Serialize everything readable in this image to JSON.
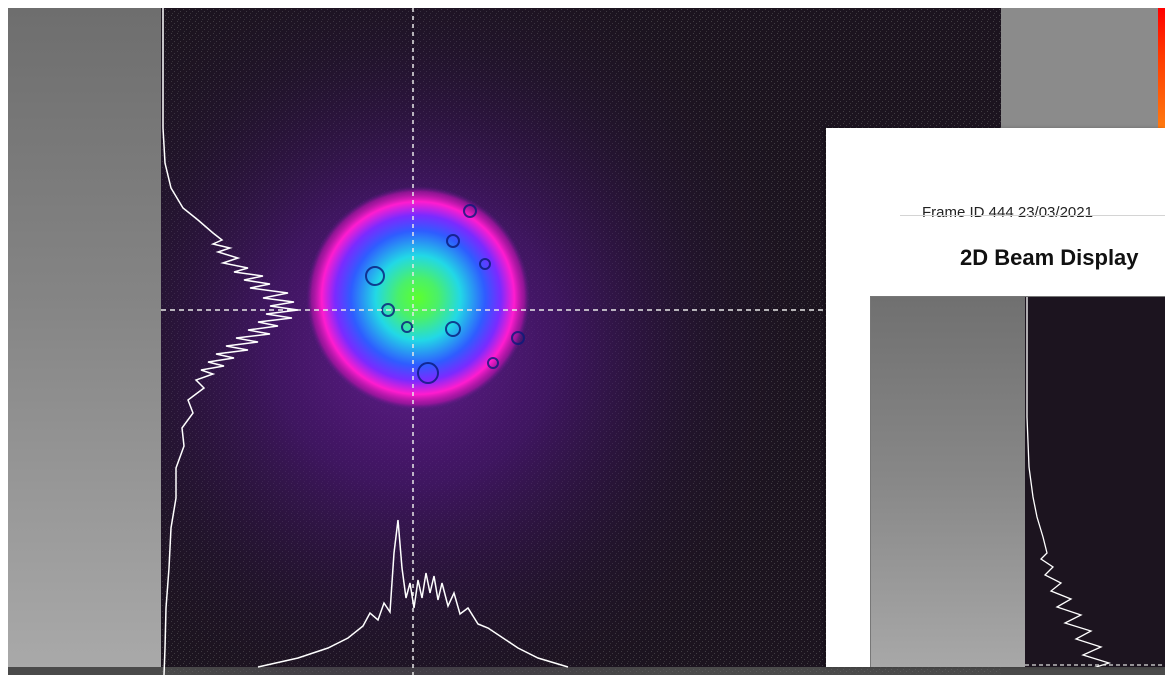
{
  "report": {
    "frame_info": "Frame ID 444 23/03/2021",
    "title": "2D Beam Display"
  },
  "colors": {
    "background_dark": "#1c141f",
    "purple_halo": "#5a1a8a",
    "magenta_ring": "#ff1ccf",
    "blue_ring": "#2f5cff",
    "cyan": "#22d8e6",
    "green_core": "#5cff2e",
    "profile_line": "#ffffff",
    "scale_top": "#ff0000"
  }
}
